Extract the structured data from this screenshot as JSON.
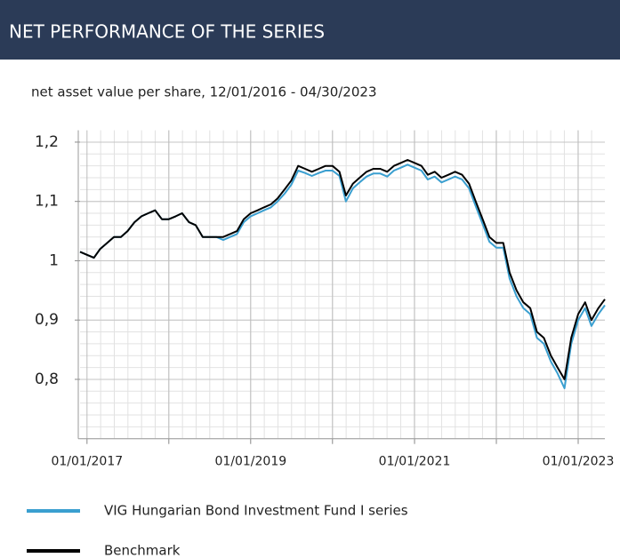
{
  "chart_data": {
    "type": "line",
    "title": "NET PERFORMANCE OF THE SERIES",
    "subtitle": "net asset value per share, 12/01/2016 - 04/30/2023",
    "x": [
      "2016-12-01",
      "2017-01-01",
      "2017-02-01",
      "2017-03-01",
      "2017-04-01",
      "2017-05-01",
      "2017-06-01",
      "2017-07-01",
      "2017-08-01",
      "2017-09-01",
      "2017-10-01",
      "2017-11-01",
      "2017-12-01",
      "2018-01-01",
      "2018-02-01",
      "2018-03-01",
      "2018-04-01",
      "2018-05-01",
      "2018-06-01",
      "2018-07-01",
      "2018-08-01",
      "2018-09-01",
      "2018-10-01",
      "2018-11-01",
      "2018-12-01",
      "2019-01-01",
      "2019-02-01",
      "2019-03-01",
      "2019-04-01",
      "2019-05-01",
      "2019-06-01",
      "2019-07-01",
      "2019-08-01",
      "2019-09-01",
      "2019-10-01",
      "2019-11-01",
      "2019-12-01",
      "2020-01-01",
      "2020-02-01",
      "2020-03-01",
      "2020-04-01",
      "2020-05-01",
      "2020-06-01",
      "2020-07-01",
      "2020-08-01",
      "2020-09-01",
      "2020-10-01",
      "2020-11-01",
      "2020-12-01",
      "2021-01-01",
      "2021-02-01",
      "2021-03-01",
      "2021-04-01",
      "2021-05-01",
      "2021-06-01",
      "2021-07-01",
      "2021-08-01",
      "2021-09-01",
      "2021-10-01",
      "2021-11-01",
      "2021-12-01",
      "2022-01-01",
      "2022-02-01",
      "2022-03-01",
      "2022-04-01",
      "2022-05-01",
      "2022-06-01",
      "2022-07-01",
      "2022-08-01",
      "2022-09-01",
      "2022-10-01",
      "2022-11-01",
      "2022-12-01",
      "2023-01-01",
      "2023-02-01",
      "2023-03-01",
      "2023-04-01",
      "2023-04-30"
    ],
    "series": [
      {
        "name": "VIG Hungarian Bond Investment Fund I series",
        "color": "#3a9fd0",
        "values": [
          1.015,
          1.01,
          1.005,
          1.02,
          1.03,
          1.04,
          1.04,
          1.05,
          1.065,
          1.075,
          1.08,
          1.085,
          1.07,
          1.07,
          1.075,
          1.08,
          1.065,
          1.06,
          1.04,
          1.04,
          1.04,
          1.035,
          1.04,
          1.045,
          1.065,
          1.075,
          1.08,
          1.085,
          1.09,
          1.1,
          1.113,
          1.128,
          1.152,
          1.148,
          1.143,
          1.148,
          1.152,
          1.152,
          1.143,
          1.1,
          1.122,
          1.132,
          1.142,
          1.147,
          1.147,
          1.142,
          1.152,
          1.157,
          1.162,
          1.157,
          1.152,
          1.137,
          1.142,
          1.132,
          1.137,
          1.142,
          1.137,
          1.122,
          1.092,
          1.062,
          1.032,
          1.022,
          1.022,
          0.97,
          0.94,
          0.92,
          0.91,
          0.87,
          0.86,
          0.83,
          0.81,
          0.785,
          0.86,
          0.9,
          0.92,
          0.89,
          0.91,
          0.925
        ]
      },
      {
        "name": "Benchmark",
        "color": "#000000",
        "values": [
          1.015,
          1.01,
          1.005,
          1.02,
          1.03,
          1.04,
          1.04,
          1.05,
          1.065,
          1.075,
          1.08,
          1.085,
          1.07,
          1.07,
          1.075,
          1.08,
          1.065,
          1.06,
          1.04,
          1.04,
          1.04,
          1.04,
          1.045,
          1.05,
          1.07,
          1.08,
          1.085,
          1.09,
          1.095,
          1.105,
          1.12,
          1.135,
          1.16,
          1.155,
          1.15,
          1.155,
          1.16,
          1.16,
          1.15,
          1.11,
          1.13,
          1.14,
          1.15,
          1.155,
          1.155,
          1.15,
          1.16,
          1.165,
          1.17,
          1.165,
          1.16,
          1.145,
          1.15,
          1.14,
          1.145,
          1.15,
          1.145,
          1.13,
          1.1,
          1.07,
          1.04,
          1.03,
          1.03,
          0.98,
          0.95,
          0.93,
          0.92,
          0.88,
          0.87,
          0.84,
          0.82,
          0.8,
          0.87,
          0.91,
          0.93,
          0.9,
          0.92,
          0.935
        ]
      }
    ],
    "xlim": [
      "2016-12-01",
      "2023-04-30"
    ],
    "xticks": [
      {
        "value": "2017-01-01",
        "label": "01/01/2017"
      },
      {
        "value": "2018-01-01",
        "label": ""
      },
      {
        "value": "2019-01-01",
        "label": "01/01/2019"
      },
      {
        "value": "2020-01-01",
        "label": ""
      },
      {
        "value": "2021-01-01",
        "label": "01/01/2021"
      },
      {
        "value": "2022-01-01",
        "label": ""
      },
      {
        "value": "2023-01-01",
        "label": "01/01/2023"
      }
    ],
    "ylim": [
      0.7,
      1.22
    ],
    "yticks": [
      {
        "value": 0.8,
        "label": "0,8"
      },
      {
        "value": 0.9,
        "label": "0,9"
      },
      1,
      {
        "value": 1.1,
        "label": "1,1"
      },
      {
        "value": 1.2,
        "label": "1,2"
      }
    ],
    "grid": true
  }
}
